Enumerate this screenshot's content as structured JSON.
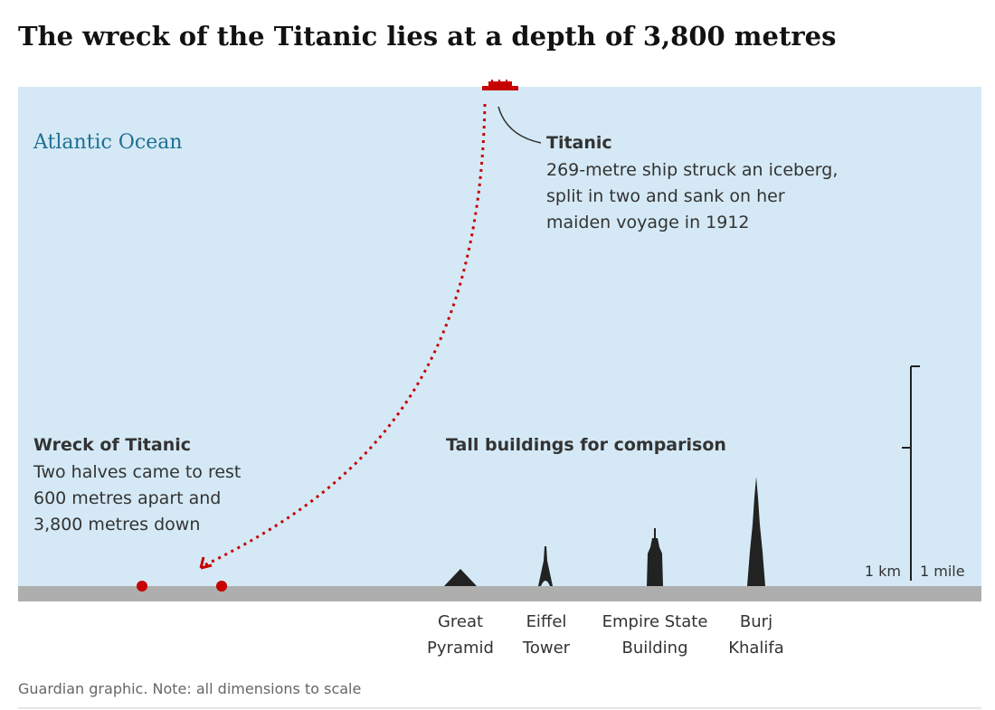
{
  "header": {
    "title": "The wreck of the Titanic lies at a depth of 3,800 metres"
  },
  "ocean_label": "Atlantic Ocean",
  "titanic": {
    "label": "Titanic",
    "description": [
      "269-metre ship struck an iceberg,",
      "split in two and sank on her",
      "maiden voyage in 1912"
    ]
  },
  "wreck": {
    "label": "Wreck of Titanic",
    "description": [
      "Two halves came to rest",
      "600 metres apart and",
      "3,800 metres down"
    ]
  },
  "buildings": {
    "title": "Tall buildings for comparison",
    "items": [
      [
        "Great",
        "Pyramid"
      ],
      [
        "Eiffel",
        "Tower"
      ],
      [
        "Empire State",
        "Building"
      ],
      [
        "Burj",
        "Khalifa"
      ]
    ]
  },
  "scale": {
    "km": "1 km",
    "mile": "1 mile"
  },
  "footer": "Guardian graphic. Note: all dimensions to scale"
}
